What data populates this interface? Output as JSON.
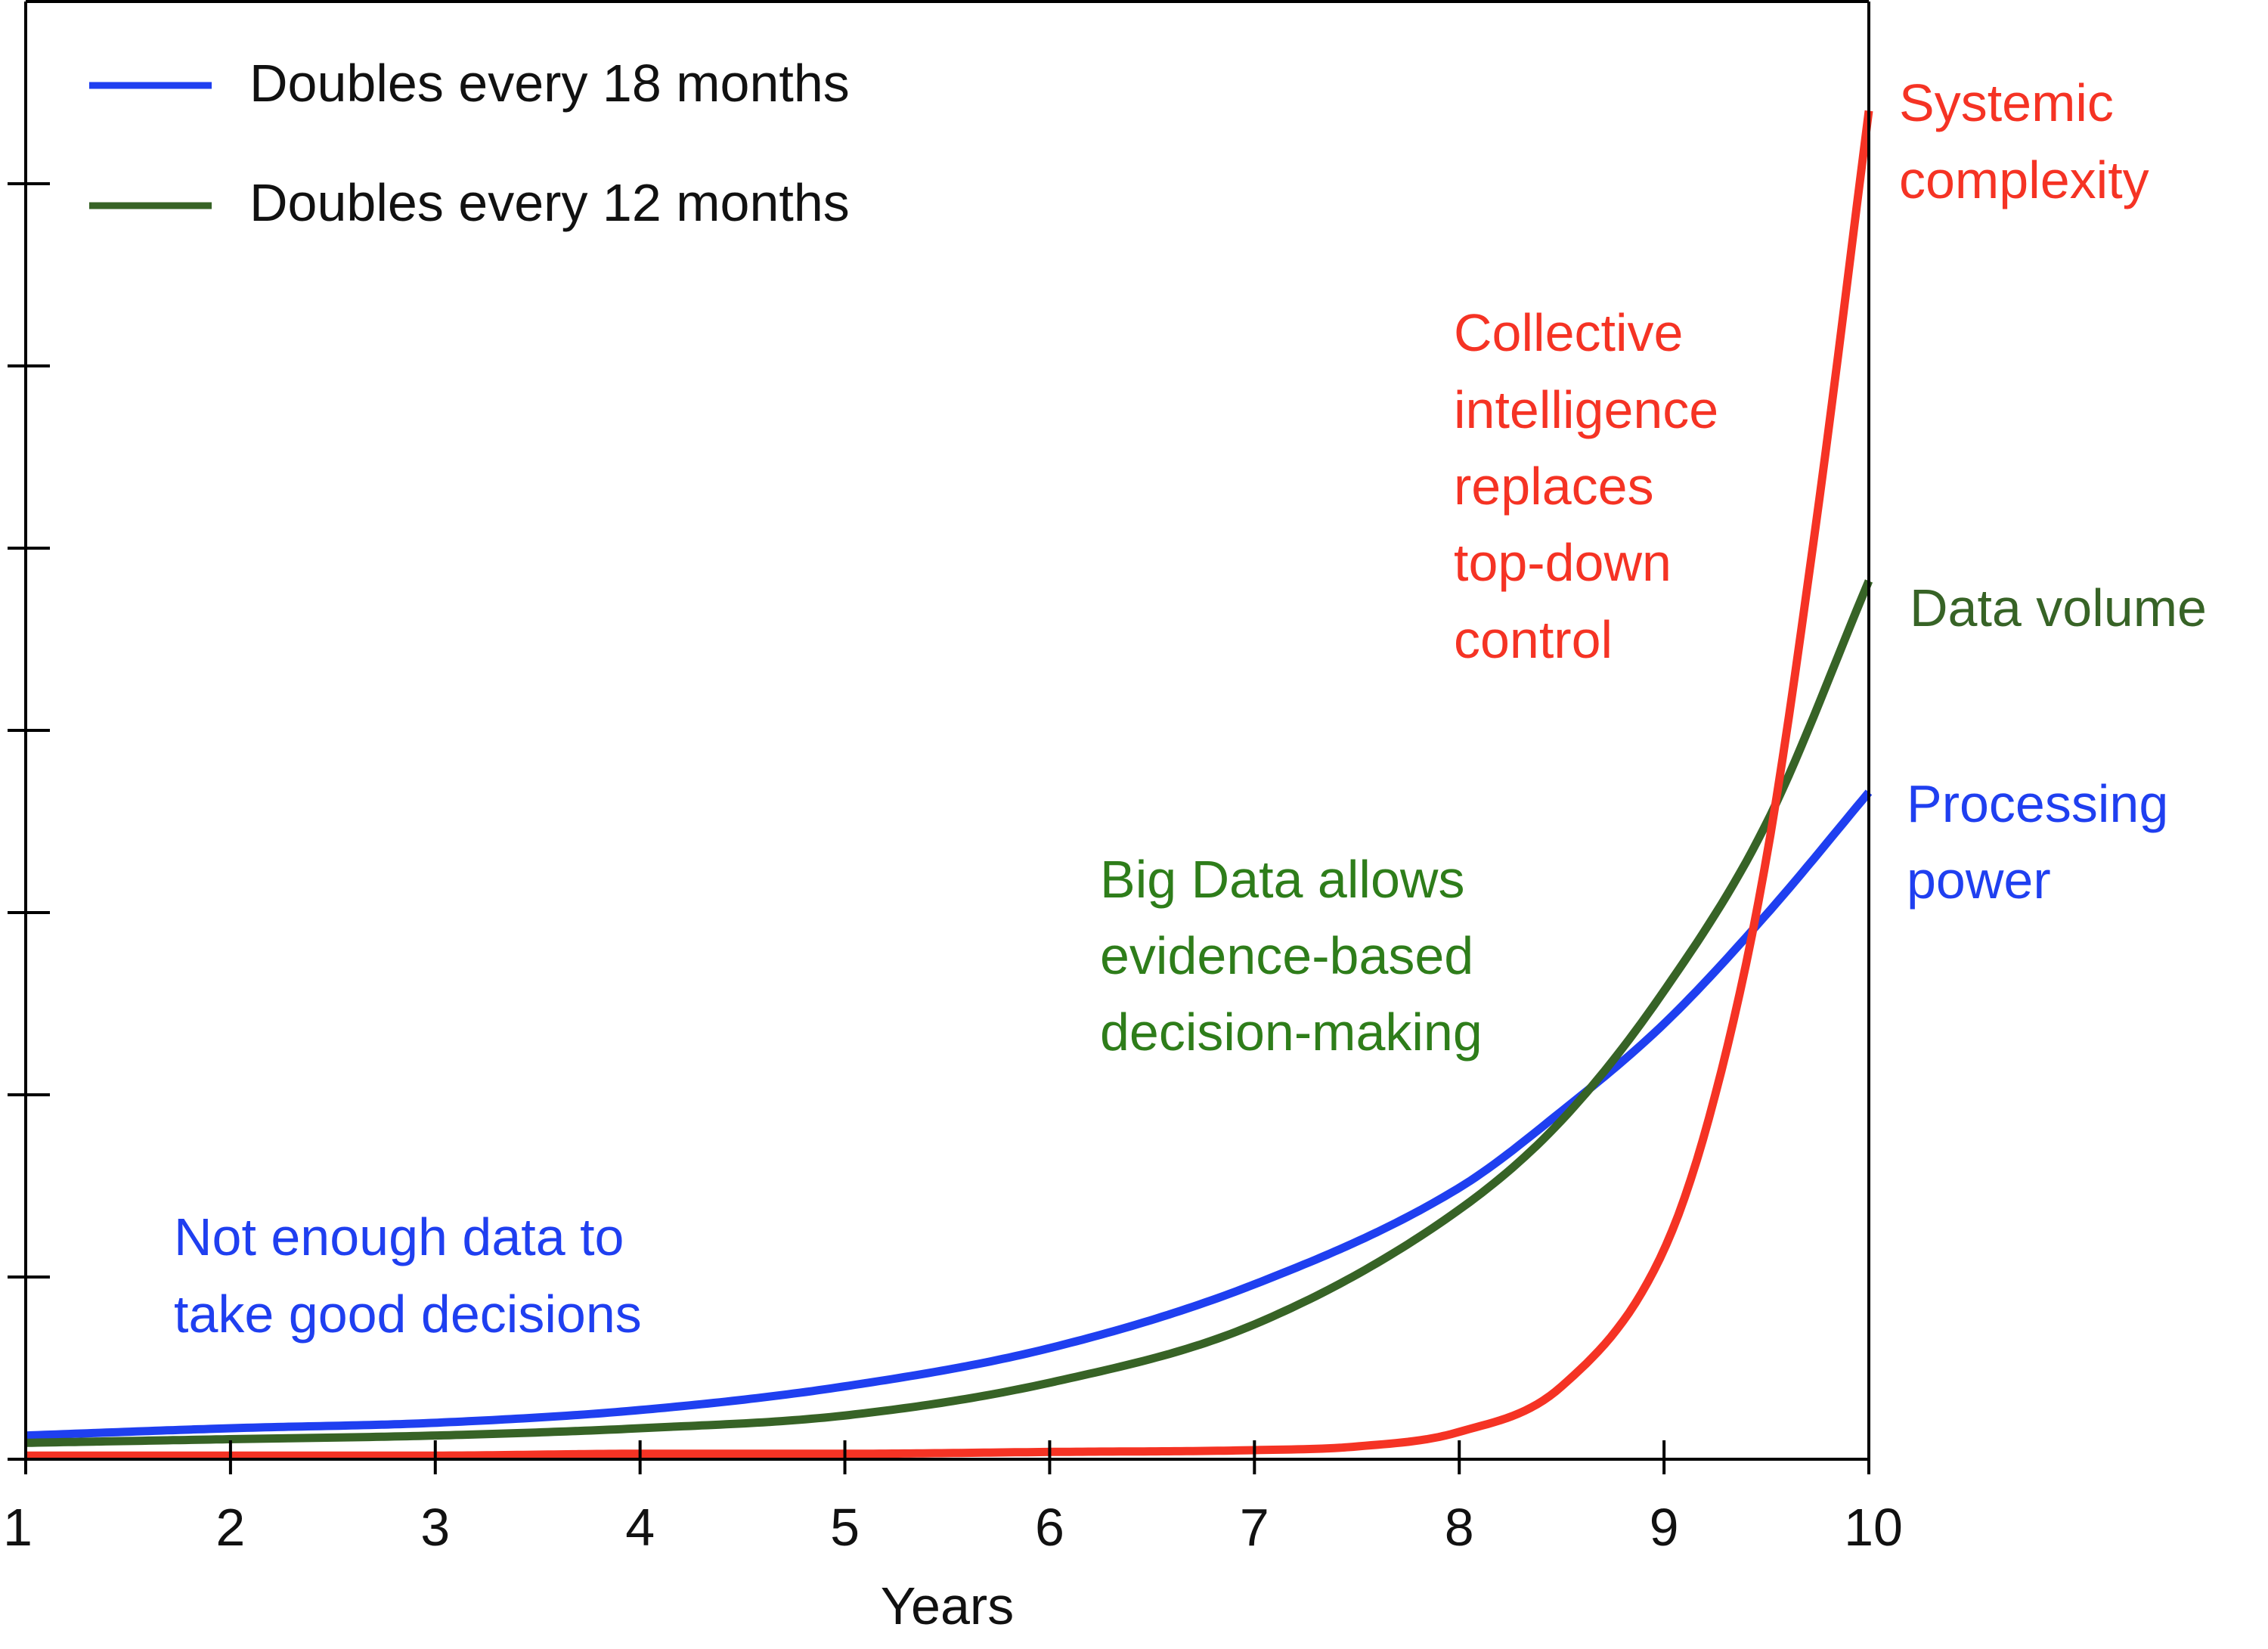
{
  "chart_data": {
    "type": "line",
    "xlabel": "Years",
    "ylabel": "",
    "xlim": [
      1,
      10
    ],
    "ylim": [
      0,
      8
    ],
    "x_ticks": [
      "1",
      "2",
      "3",
      "4",
      "5",
      "6",
      "7",
      "8",
      "9",
      "10"
    ],
    "y_ticks": [
      0,
      1,
      2,
      3,
      4,
      5,
      6,
      7
    ],
    "y_tick_labels_shown": false,
    "grid": false,
    "legend_position": "top-left",
    "legend": [
      {
        "label": "Doubles every 18 months",
        "color": "#1f3ff0"
      },
      {
        "label": "Doubles every 12 months",
        "color": "#376326"
      }
    ],
    "series": [
      {
        "name": "Processing power",
        "color": "#1f3ff0",
        "x": [
          1,
          2,
          3,
          4,
          5,
          6,
          7,
          8,
          8.5,
          9,
          9.5,
          10
        ],
        "y": [
          0.13,
          0.17,
          0.2,
          0.27,
          0.4,
          0.61,
          0.96,
          1.49,
          1.91,
          2.39,
          2.99,
          3.66
        ]
      },
      {
        "name": "Data volume",
        "color": "#376326",
        "x": [
          1,
          2,
          3,
          4,
          5,
          6,
          7,
          8,
          8.5,
          9,
          9.5,
          10
        ],
        "y": [
          0.09,
          0.11,
          0.13,
          0.17,
          0.24,
          0.42,
          0.74,
          1.37,
          1.86,
          2.57,
          3.49,
          4.82
        ]
      },
      {
        "name": "Systemic complexity",
        "color": "#f53324",
        "x": [
          1,
          2,
          3,
          4,
          5,
          6,
          7,
          7.5,
          8,
          8.5,
          9,
          9.25,
          9.5,
          9.75,
          10
        ],
        "y": [
          0.02,
          0.02,
          0.02,
          0.03,
          0.03,
          0.04,
          0.05,
          0.07,
          0.15,
          0.4,
          1.15,
          2.0,
          3.3,
          5.2,
          7.4
        ]
      }
    ],
    "line_labels": [
      {
        "text": [
          "Systemic",
          "complexity"
        ],
        "color": "#f53324"
      },
      {
        "text": [
          "Data volume"
        ],
        "color": "#376326"
      },
      {
        "text": [
          "Processing",
          "power"
        ],
        "color": "#1f3ff0"
      }
    ],
    "annotations": [
      {
        "text": [
          "Not enough data to",
          "take good decisions"
        ],
        "color": "#1f3ff0"
      },
      {
        "text": [
          "Big Data allows",
          "evidence-based",
          "decision-making"
        ],
        "color": "#2e7d1a"
      },
      {
        "text": [
          "Collective",
          "intelligence",
          "replaces",
          "top-down",
          "control"
        ],
        "color": "#f53324"
      }
    ]
  }
}
